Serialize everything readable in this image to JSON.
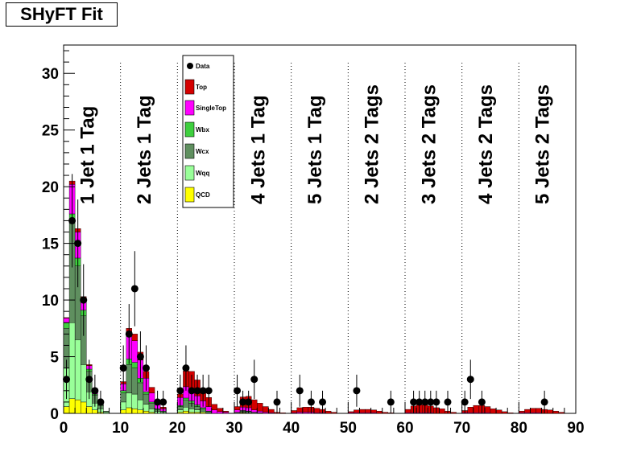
{
  "title": "SHyFT Fit",
  "colors": {
    "Top": "#d40000",
    "SingleTop": "#ff00ff",
    "Wbx": "#3ecf3e",
    "Wcx": "#5f8f5f",
    "Wqq": "#99ff99",
    "QCD": "#ffff00",
    "Data": "#000000"
  },
  "chart_data": {
    "type": "bar",
    "stacked": true,
    "xlim": [
      0,
      90
    ],
    "ylim": [
      0,
      32.5
    ],
    "xticks": [
      0,
      10,
      20,
      30,
      40,
      50,
      60,
      70,
      80,
      90
    ],
    "yticks": [
      0,
      5,
      10,
      15,
      20,
      25,
      30
    ],
    "bin_width": 1,
    "region_boundaries": [
      10,
      20,
      30,
      40,
      50,
      60,
      70,
      80
    ],
    "region_labels": [
      {
        "text": "1 Jet 1 Tag",
        "x": 5
      },
      {
        "text": "2 Jets 1 Tag",
        "x": 15
      },
      {
        "text": "4 Jets 1 Tag",
        "x": 35
      },
      {
        "text": "5 Jets 1 Tag",
        "x": 45
      },
      {
        "text": "2 Jets 2 Tags",
        "x": 55
      },
      {
        "text": "3 Jets 2 Tags",
        "x": 65
      },
      {
        "text": "4 Jets 2 Tags",
        "x": 75
      },
      {
        "text": "5 Jets 2 Tags",
        "x": 85
      }
    ],
    "legend": [
      "Data",
      "Top",
      "SingleTop",
      "Wbx",
      "Wcx",
      "Wqq",
      "QCD"
    ],
    "legend_position": "top-left-center",
    "series": [
      {
        "name": "QCD",
        "values": [
          0.6,
          1.3,
          1.2,
          1.0,
          0.6,
          0.3,
          0.1,
          0,
          0,
          0,
          0.3,
          0.5,
          0.4,
          0.3,
          0.2,
          0.1,
          0,
          0,
          0,
          0,
          0.1,
          0.2,
          0.1,
          0.1,
          0.1,
          0,
          0,
          0,
          0,
          0,
          0,
          0.05,
          0,
          0,
          0,
          0,
          0,
          0,
          0,
          0,
          0,
          0,
          0,
          0,
          0,
          0,
          0,
          0,
          0,
          0,
          0,
          0,
          0,
          0,
          0,
          0,
          0,
          0,
          0,
          0,
          0,
          0,
          0,
          0,
          0,
          0,
          0,
          0,
          0,
          0,
          0,
          0,
          0,
          0,
          0,
          0,
          0,
          0,
          0,
          0,
          0,
          0,
          0,
          0,
          0,
          0,
          0,
          0,
          0,
          0
        ]
      },
      {
        "name": "Wqq",
        "values": [
          3.4,
          6.7,
          5.3,
          3.3,
          1.3,
          0.6,
          0.3,
          0.1,
          0,
          0,
          0.7,
          1.3,
          1.3,
          0.9,
          0.6,
          0.3,
          0.15,
          0.1,
          0,
          0,
          0.2,
          0.35,
          0.3,
          0.2,
          0.1,
          0.05,
          0,
          0,
          0,
          0,
          0.05,
          0.05,
          0.05,
          0.05,
          0,
          0,
          0,
          0,
          0,
          0,
          0,
          0,
          0,
          0,
          0,
          0,
          0,
          0,
          0,
          0,
          0,
          0,
          0,
          0,
          0,
          0,
          0,
          0,
          0,
          0,
          0,
          0,
          0,
          0,
          0,
          0,
          0,
          0,
          0,
          0,
          0,
          0,
          0,
          0,
          0,
          0,
          0,
          0,
          0,
          0,
          0,
          0,
          0,
          0,
          0,
          0,
          0,
          0,
          0,
          0
        ]
      },
      {
        "name": "Wcx",
        "values": [
          3.5,
          8.8,
          6.5,
          4.3,
          1.8,
          0.7,
          0.3,
          0.1,
          0,
          0,
          0.8,
          2.5,
          2.3,
          1.5,
          0.9,
          0.5,
          0.2,
          0.1,
          0,
          0,
          0.3,
          0.6,
          0.5,
          0.3,
          0.2,
          0.1,
          0,
          0,
          0,
          0,
          0.05,
          0.1,
          0.1,
          0.05,
          0.05,
          0,
          0,
          0,
          0,
          0,
          0,
          0,
          0,
          0,
          0,
          0,
          0,
          0,
          0,
          0,
          0,
          0,
          0,
          0,
          0,
          0,
          0,
          0,
          0,
          0,
          0,
          0,
          0,
          0,
          0,
          0,
          0,
          0,
          0,
          0,
          0,
          0,
          0,
          0,
          0,
          0,
          0,
          0,
          0,
          0,
          0,
          0,
          0,
          0,
          0,
          0,
          0,
          0,
          0,
          0
        ]
      },
      {
        "name": "Wbx",
        "values": [
          0.5,
          0.8,
          0.7,
          0.5,
          0.2,
          0.1,
          0.05,
          0,
          0,
          0,
          0.2,
          0.5,
          0.5,
          0.4,
          0.2,
          0.1,
          0.05,
          0,
          0,
          0,
          0.1,
          0.2,
          0.2,
          0.15,
          0.1,
          0.05,
          0,
          0,
          0,
          0,
          0,
          0.05,
          0.05,
          0,
          0,
          0,
          0,
          0,
          0,
          0,
          0,
          0,
          0,
          0,
          0,
          0,
          0,
          0,
          0,
          0,
          0,
          0,
          0,
          0,
          0,
          0,
          0,
          0,
          0,
          0,
          0,
          0,
          0,
          0,
          0,
          0,
          0,
          0,
          0,
          0,
          0,
          0,
          0,
          0,
          0,
          0,
          0,
          0,
          0,
          0,
          0,
          0,
          0,
          0,
          0,
          0,
          0,
          0,
          0,
          0
        ]
      },
      {
        "name": "SingleTop",
        "values": [
          0.4,
          2.6,
          2.3,
          1.0,
          0.3,
          0.1,
          0.05,
          0,
          0,
          0,
          0.6,
          2.1,
          1.9,
          1.6,
          1.2,
          0.8,
          0.4,
          0.2,
          0,
          0,
          0.7,
          1.0,
          1.0,
          0.8,
          0.6,
          0.4,
          0.3,
          0.15,
          0.1,
          0,
          0.2,
          0.3,
          0.3,
          0.2,
          0.15,
          0.1,
          0.05,
          0,
          0,
          0,
          0.05,
          0.1,
          0.1,
          0.1,
          0.05,
          0.05,
          0,
          0,
          0,
          0,
          0.05,
          0.05,
          0.05,
          0.05,
          0.05,
          0,
          0,
          0,
          0,
          0,
          0.05,
          0.05,
          0.05,
          0.05,
          0.05,
          0,
          0,
          0,
          0,
          0,
          0.05,
          0.05,
          0.05,
          0.05,
          0.05,
          0,
          0,
          0,
          0,
          0,
          0.05,
          0.05,
          0.05,
          0.05,
          0,
          0,
          0,
          0,
          0,
          0
        ]
      },
      {
        "name": "Top",
        "values": [
          0.05,
          0.3,
          0.3,
          0.2,
          0.1,
          0.05,
          0,
          0,
          0,
          0,
          0.2,
          0.6,
          0.6,
          0.7,
          0.6,
          0.5,
          0.3,
          0.15,
          0,
          0,
          0.3,
          1.4,
          1.6,
          1.4,
          1.1,
          0.8,
          0.5,
          0.3,
          0.1,
          0,
          0.3,
          0.9,
          1.0,
          0.9,
          0.7,
          0.5,
          0.3,
          0.1,
          0.05,
          0,
          0.2,
          0.4,
          0.45,
          0.45,
          0.4,
          0.3,
          0.2,
          0.1,
          0,
          0,
          0.1,
          0.25,
          0.3,
          0.3,
          0.25,
          0.2,
          0.1,
          0.05,
          0,
          0,
          0.3,
          0.6,
          0.7,
          0.7,
          0.6,
          0.5,
          0.4,
          0.2,
          0.1,
          0,
          0.2,
          0.5,
          0.65,
          0.65,
          0.55,
          0.4,
          0.3,
          0.15,
          0.05,
          0,
          0.15,
          0.3,
          0.4,
          0.4,
          0.35,
          0.3,
          0.2,
          0.1,
          0,
          0
        ]
      }
    ],
    "data_points": [
      {
        "x": 0.5,
        "y": 3
      },
      {
        "x": 1.5,
        "y": 17
      },
      {
        "x": 2.5,
        "y": 15
      },
      {
        "x": 3.5,
        "y": 10
      },
      {
        "x": 4.5,
        "y": 3
      },
      {
        "x": 5.5,
        "y": 2
      },
      {
        "x": 6.5,
        "y": 1
      },
      {
        "x": 10.5,
        "y": 4
      },
      {
        "x": 11.5,
        "y": 7
      },
      {
        "x": 12.5,
        "y": 11
      },
      {
        "x": 13.5,
        "y": 5
      },
      {
        "x": 14.5,
        "y": 4
      },
      {
        "x": 16.5,
        "y": 1
      },
      {
        "x": 17.5,
        "y": 1
      },
      {
        "x": 20.5,
        "y": 2
      },
      {
        "x": 21.5,
        "y": 4
      },
      {
        "x": 22.5,
        "y": 2
      },
      {
        "x": 23.5,
        "y": 2
      },
      {
        "x": 24.5,
        "y": 2
      },
      {
        "x": 25.5,
        "y": 2
      },
      {
        "x": 30.5,
        "y": 2
      },
      {
        "x": 31.5,
        "y": 1
      },
      {
        "x": 32.5,
        "y": 1
      },
      {
        "x": 33.5,
        "y": 3
      },
      {
        "x": 37.5,
        "y": 1
      },
      {
        "x": 41.5,
        "y": 2
      },
      {
        "x": 43.5,
        "y": 1
      },
      {
        "x": 45.5,
        "y": 1
      },
      {
        "x": 51.5,
        "y": 2
      },
      {
        "x": 57.5,
        "y": 1
      },
      {
        "x": 61.5,
        "y": 1
      },
      {
        "x": 62.5,
        "y": 1
      },
      {
        "x": 63.5,
        "y": 1
      },
      {
        "x": 64.5,
        "y": 1
      },
      {
        "x": 65.5,
        "y": 1
      },
      {
        "x": 67.5,
        "y": 1
      },
      {
        "x": 70.5,
        "y": 1
      },
      {
        "x": 71.5,
        "y": 3
      },
      {
        "x": 73.5,
        "y": 1
      },
      {
        "x": 84.5,
        "y": 1
      }
    ]
  }
}
